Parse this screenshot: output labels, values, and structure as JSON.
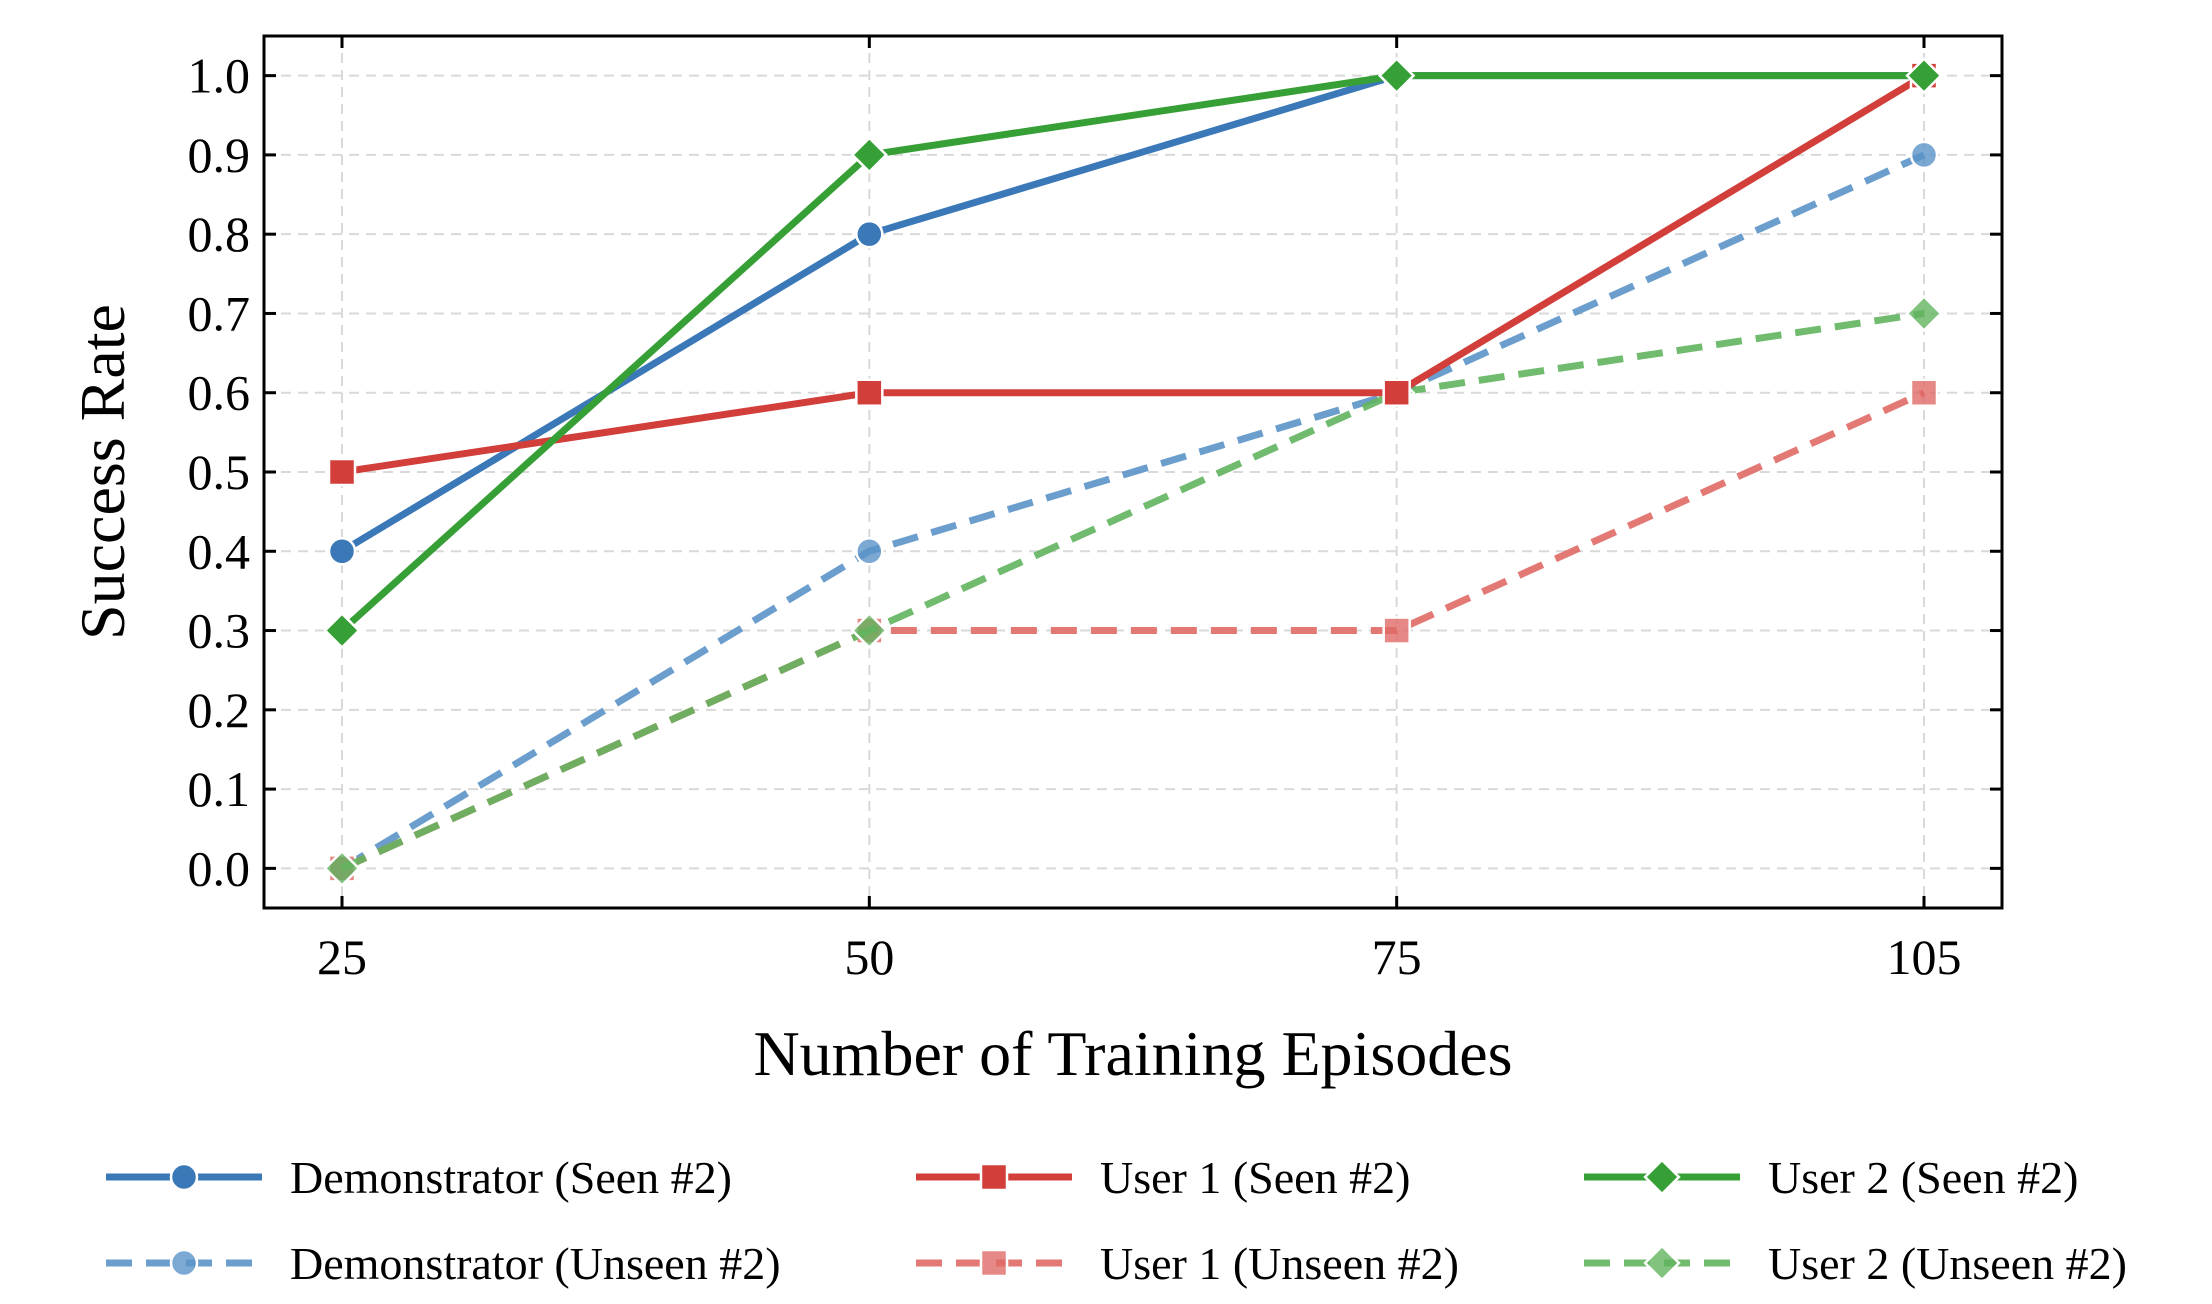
{
  "chart_data": {
    "type": "line",
    "x": [
      25,
      50,
      75,
      105
    ],
    "x_tick_labels": [
      "25",
      "50",
      "75",
      "105"
    ],
    "y_ticks": [
      0.0,
      0.1,
      0.2,
      0.3,
      0.4,
      0.5,
      0.6,
      0.7,
      0.8,
      0.9,
      1.0
    ],
    "y_tick_labels": [
      "0.0",
      "0.1",
      "0.2",
      "0.3",
      "0.4",
      "0.5",
      "0.6",
      "0.7",
      "0.8",
      "0.9",
      "1.0"
    ],
    "xlabel": "Number of Training Episodes",
    "ylabel": "Success Rate",
    "ylim": [
      -0.05,
      1.05
    ],
    "grid": true,
    "legend_position": "bottom",
    "series": [
      {
        "name": "Demonstrator (Seen #2)",
        "values": [
          0.4,
          0.8,
          1.0,
          1.0
        ],
        "color": "#3a78b8",
        "marker": "circle",
        "style": "solid"
      },
      {
        "name": "User 1 (Seen #2)",
        "values": [
          0.5,
          0.6,
          0.6,
          1.0
        ],
        "color": "#d23f3a",
        "marker": "square",
        "style": "solid"
      },
      {
        "name": "User 2 (Seen #2)",
        "values": [
          0.3,
          0.9,
          1.0,
          1.0
        ],
        "color": "#36a036",
        "marker": "diamond",
        "style": "solid"
      },
      {
        "name": "Demonstrator (Unseen #2)",
        "values": [
          0.0,
          0.4,
          0.6,
          0.9
        ],
        "color": "#5b93c8",
        "marker": "circle",
        "style": "dashed"
      },
      {
        "name": "User 1 (Unseen #2)",
        "values": [
          0.0,
          0.3,
          0.3,
          0.6
        ],
        "color": "#e06a66",
        "marker": "square",
        "style": "dashed"
      },
      {
        "name": "User 2 (Unseen #2)",
        "values": [
          0.0,
          0.3,
          0.6,
          0.7
        ],
        "color": "#62b45f",
        "marker": "diamond",
        "style": "dashed"
      }
    ]
  }
}
